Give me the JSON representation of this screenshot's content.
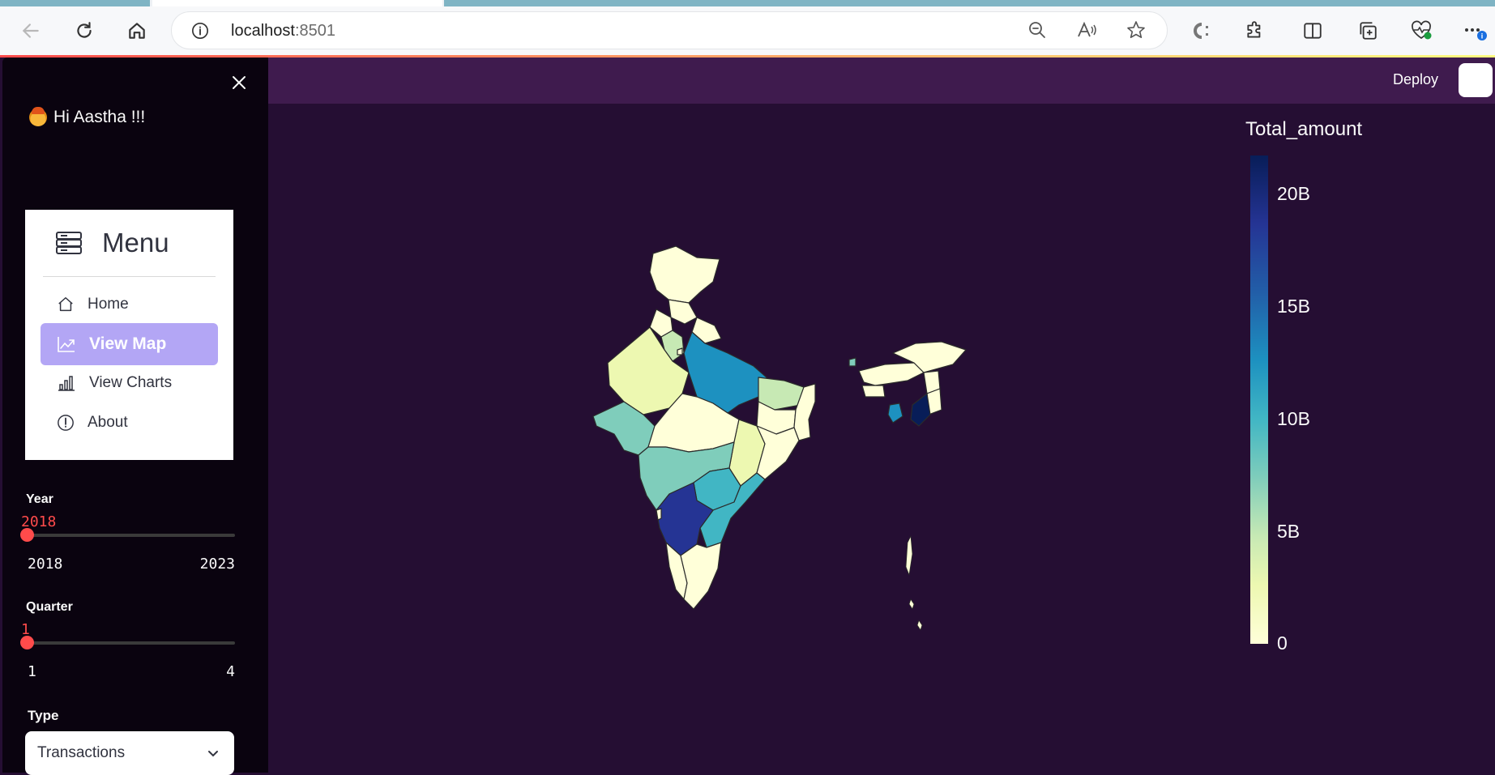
{
  "browser": {
    "url_host": "localhost",
    "url_port": ":8501"
  },
  "sidebar": {
    "greeting": "Hi Aastha !!!",
    "menu": {
      "title": "Menu",
      "items": [
        {
          "label": "Home",
          "icon": "house-icon"
        },
        {
          "label": "View Map",
          "icon": "graph-up-icon",
          "active": true
        },
        {
          "label": "View Charts",
          "icon": "bar-chart-icon"
        },
        {
          "label": "About",
          "icon": "exclamation-circle-icon"
        }
      ]
    },
    "year": {
      "label": "Year",
      "value": "2018",
      "min": "2018",
      "max": "2023"
    },
    "quarter": {
      "label": "Quarter",
      "value": "1",
      "min": "1",
      "max": "4"
    },
    "type": {
      "label": "Type",
      "selected": "Transactions"
    }
  },
  "header": {
    "deploy_label": "Deploy"
  },
  "colors": {
    "accent": "#ff4b4b",
    "menu_active": "#b3a6f5",
    "background": "#250e33",
    "header": "#3f1b4e"
  },
  "map": {
    "colorbar_title": "Total_amount",
    "colorbar_ticks": [
      "20B",
      "15B",
      "10B",
      "5B",
      "0"
    ],
    "colorscale": "YlGnBu"
  }
}
